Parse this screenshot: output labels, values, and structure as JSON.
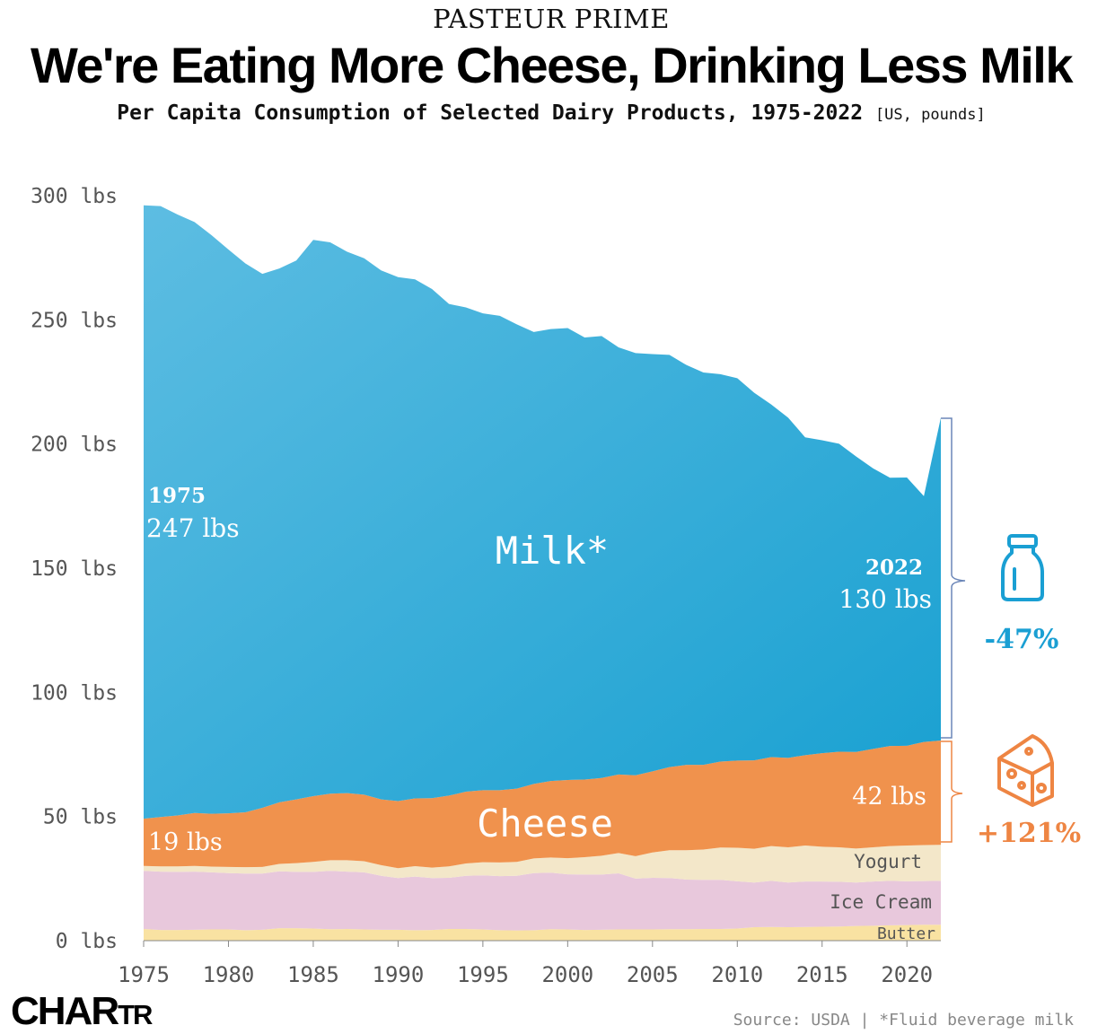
{
  "header": {
    "brand": "PASTEUR PRIME",
    "title": "We're Eating More Cheese, Drinking Less Milk",
    "subtitle": "Per Capita Consumption of Selected Dairy Products, 1975-2022",
    "subtitle_unit": "[US, pounds]"
  },
  "footer": {
    "logo_main": "CHAR",
    "logo_tail": "TR",
    "source": "Source: USDA | *Fluid beverage milk"
  },
  "chart_data": {
    "type": "area",
    "stacked": true,
    "grid": false,
    "x": [
      1975,
      1976,
      1977,
      1978,
      1979,
      1980,
      1981,
      1982,
      1983,
      1984,
      1985,
      1986,
      1987,
      1988,
      1989,
      1990,
      1991,
      1992,
      1993,
      1994,
      1995,
      1996,
      1997,
      1998,
      1999,
      2000,
      2001,
      2002,
      2003,
      2004,
      2005,
      2006,
      2007,
      2008,
      2009,
      2010,
      2011,
      2012,
      2013,
      2014,
      2015,
      2016,
      2017,
      2018,
      2019,
      2020,
      2021,
      2022
    ],
    "ylim": [
      0,
      300
    ],
    "yticks": [
      0,
      50,
      100,
      150,
      200,
      250,
      300
    ],
    "ytick_labels": [
      "0 lbs",
      "50 lbs",
      "100 lbs",
      "150 lbs",
      "200 lbs",
      "250 lbs",
      "300 lbs"
    ],
    "xticks": [
      1975,
      1980,
      1985,
      1990,
      1995,
      2000,
      2005,
      2010,
      2015,
      2020
    ],
    "xtick_labels": [
      "1975",
      "1980",
      "1985",
      "1990",
      "1995",
      "2000",
      "2005",
      "2010",
      "2015",
      "2020"
    ],
    "series": [
      {
        "name": "Butter",
        "color": "#f9e2a2",
        "values": [
          4.7,
          4.3,
          4.3,
          4.4,
          4.5,
          4.5,
          4.2,
          4.4,
          5.0,
          5.0,
          4.9,
          4.6,
          4.7,
          4.5,
          4.4,
          4.4,
          4.2,
          4.3,
          4.7,
          4.7,
          4.5,
          4.2,
          4.1,
          4.2,
          4.6,
          4.5,
          4.3,
          4.4,
          4.5,
          4.5,
          4.5,
          4.6,
          4.6,
          4.7,
          4.7,
          4.9,
          5.4,
          5.5,
          5.4,
          5.5,
          5.6,
          5.7,
          5.9,
          6.0,
          6.2,
          6.3,
          6.4,
          6.4
        ]
      },
      {
        "name": "Ice Cream",
        "color": "#e8c8dc",
        "values": [
          23.4,
          23.5,
          23.4,
          23.4,
          23.0,
          22.7,
          22.8,
          22.6,
          22.9,
          22.7,
          22.8,
          23.5,
          23.1,
          23.0,
          21.7,
          20.8,
          21.6,
          20.9,
          20.6,
          21.4,
          21.8,
          21.8,
          22.0,
          23.0,
          22.8,
          22.2,
          22.3,
          22.2,
          22.6,
          20.5,
          20.8,
          20.6,
          20.0,
          19.8,
          19.8,
          19.0,
          18.0,
          18.6,
          18.0,
          18.3,
          18.2,
          18.0,
          17.5,
          17.8,
          17.9,
          17.6,
          17.6,
          17.7
        ]
      },
      {
        "name": "Yogurt",
        "color": "#f3e7c9",
        "values": [
          2.0,
          2.1,
          2.2,
          2.3,
          2.3,
          2.5,
          2.6,
          2.7,
          3.0,
          3.5,
          4.0,
          4.3,
          4.6,
          4.5,
          4.3,
          4.0,
          4.2,
          4.2,
          4.6,
          5.0,
          5.3,
          5.5,
          5.6,
          5.9,
          6.1,
          6.5,
          7.0,
          7.6,
          8.2,
          9.0,
          10.2,
          11.2,
          11.8,
          12.2,
          13.0,
          13.5,
          13.6,
          14.0,
          14.2,
          14.5,
          14.0,
          13.9,
          13.7,
          13.8,
          14.0,
          14.4,
          14.5,
          14.5
        ]
      },
      {
        "name": "Cheese",
        "color": "#f0924d",
        "values": [
          19.0,
          19.9,
          20.5,
          21.3,
          21.3,
          21.6,
          22.1,
          23.8,
          24.8,
          25.7,
          26.5,
          26.8,
          27.0,
          26.8,
          26.5,
          27.0,
          27.3,
          28.0,
          28.5,
          28.9,
          29.0,
          29.1,
          29.5,
          30.0,
          30.8,
          31.5,
          31.3,
          31.3,
          31.6,
          32.6,
          32.7,
          33.5,
          34.4,
          34.1,
          34.6,
          35.1,
          35.6,
          35.8,
          36.0,
          36.4,
          37.7,
          38.5,
          38.9,
          39.6,
          40.3,
          40.2,
          41.5,
          42.0
        ]
      },
      {
        "name": "Milk*",
        "color": "#1ea1d0",
        "values": [
          247.0,
          246.0,
          242.0,
          238.0,
          233.0,
          227.0,
          221.0,
          215.0,
          215.0,
          217.0,
          224.0,
          222.0,
          218.0,
          216.0,
          213.0,
          211.0,
          209.0,
          205.0,
          198.0,
          195.0,
          192.0,
          191.0,
          187.0,
          182.0,
          182.0,
          182.0,
          178.0,
          178.0,
          172.0,
          170.0,
          168.0,
          166.0,
          161.0,
          158.0,
          156.0,
          154.0,
          148.0,
          142.0,
          137.0,
          128.0,
          126.0,
          124.0,
          119.0,
          113.0,
          108.0,
          108.0,
          99.0,
          130.0
        ]
      }
    ],
    "annotations": {
      "milk_start_year": "1975",
      "milk_start_value": "247 lbs",
      "milk_end_year": "2022",
      "milk_end_value": "130 lbs",
      "cheese_start_value": "19 lbs",
      "cheese_end_value": "42 lbs",
      "milk_change": "-47%",
      "cheese_change": "+121%",
      "milk_change_color": "#1a9fd3",
      "cheese_change_color": "#ee8543"
    }
  }
}
